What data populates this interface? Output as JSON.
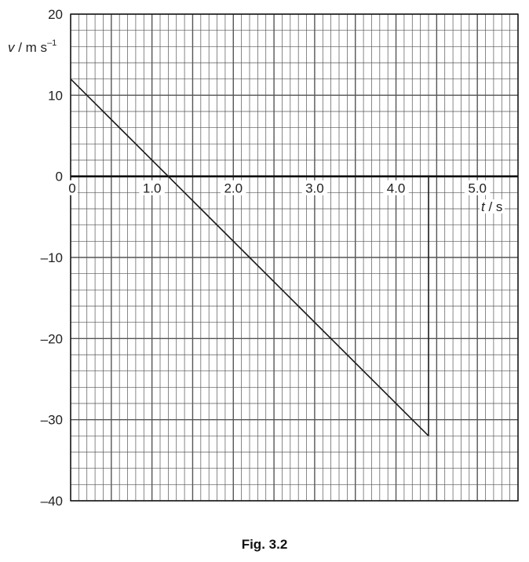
{
  "caption": "Fig. 3.2",
  "chart_data": {
    "type": "line",
    "ylabel": {
      "v": "v",
      "unit": " / m s",
      "exp": "–1"
    },
    "xlabel": {
      "v": "t",
      "unit": " / s"
    },
    "xlim": [
      0,
      5.5
    ],
    "ylim": [
      -40,
      20
    ],
    "x_ticks": [
      0,
      1.0,
      2.0,
      3.0,
      4.0,
      5.0
    ],
    "x_tick_labels": [
      "0",
      "1.0",
      "2.0",
      "3.0",
      "4.0",
      "5.0"
    ],
    "y_ticks": [
      20,
      10,
      0,
      -10,
      -20,
      -30,
      -40
    ],
    "y_tick_labels": [
      "20",
      "10",
      "0",
      "–10",
      "–20",
      "–30",
      "–40"
    ],
    "grid": true,
    "grid_minor_step": {
      "x": 0.1,
      "y": 2
    },
    "series": [
      {
        "x": [
          0,
          4.4
        ],
        "y": [
          12,
          -32
        ]
      },
      {
        "x": [
          4.4,
          4.4
        ],
        "y": [
          -32,
          0
        ]
      }
    ],
    "colors": {
      "grid": "#555555",
      "line": "#1a1a1a",
      "axis": "#111111"
    }
  }
}
